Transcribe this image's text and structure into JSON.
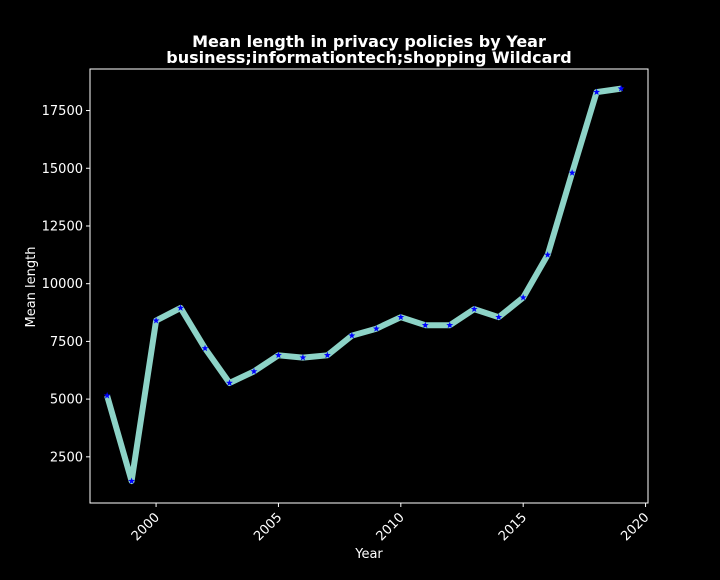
{
  "chart_data": {
    "type": "line",
    "title_line1": "Mean length in privacy policies by Year",
    "title_line2": "business;informationtech;shopping Wildcard",
    "xlabel": "Year",
    "ylabel": "Mean length",
    "xlim": [
      1997.3,
      2020.1
    ],
    "ylim": [
      500,
      19300
    ],
    "xticks": [
      2000,
      2005,
      2010,
      2015,
      2020
    ],
    "yticks": [
      2500,
      5000,
      7500,
      10000,
      12500,
      15000,
      17500
    ],
    "grid": false,
    "series": [
      {
        "x": [
          1998,
          1999,
          2000,
          2001,
          2002,
          2003,
          2004,
          2005,
          2006,
          2007,
          2008,
          2009,
          2010,
          2011,
          2012,
          2013,
          2014,
          2015,
          2016,
          2017,
          2018,
          2019
        ],
        "y": [
          5150,
          1450,
          8400,
          8950,
          7200,
          5700,
          6200,
          6900,
          6800,
          6900,
          7750,
          8050,
          8550,
          8200,
          8200,
          8900,
          8550,
          9400,
          11250,
          14800,
          18300,
          18450
        ]
      }
    ],
    "colors": {
      "background": "#000000",
      "line": "#8dd3c7",
      "marker": "#0000ff",
      "text": "#ffffff",
      "axes": "#ffffff"
    }
  }
}
